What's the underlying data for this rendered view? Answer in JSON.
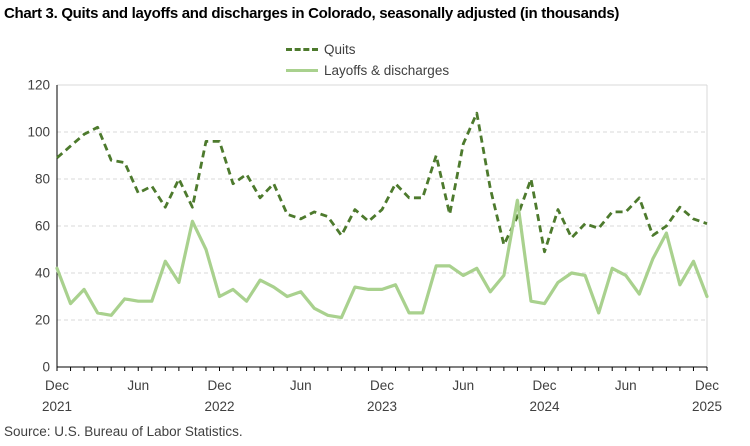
{
  "chart_data": {
    "type": "line",
    "title": "Chart 3. Quits and layoffs and discharges in Colorado, seasonally adjusted (in thousands)",
    "source": "Source: U.S. Bureau of Labor Statistics.",
    "x_frequency": "monthly",
    "x_start_month": "Dec 2021",
    "x_end_month": "Dec 2025",
    "ylim": [
      0,
      120
    ],
    "y_ticks": [
      0,
      20,
      40,
      60,
      80,
      100,
      120
    ],
    "grid": "horizontal-dashed",
    "legend_position": "top-center",
    "colors": {
      "grid": "#d9d9d9",
      "plot_border": "#d9d9d9",
      "axis": "#000000",
      "tick_text": "#404040",
      "title_text": "#000000"
    },
    "x_axis_ticks": [
      {
        "pos": 0,
        "month": "Dec",
        "year": "2021"
      },
      {
        "pos": 6,
        "month": "Jun"
      },
      {
        "pos": 12,
        "month": "Dec",
        "year": "2022"
      },
      {
        "pos": 18,
        "month": "Jun"
      },
      {
        "pos": 24,
        "month": "Dec",
        "year": "2023"
      },
      {
        "pos": 30,
        "month": "Jun"
      },
      {
        "pos": 36,
        "month": "Dec",
        "year": "2024"
      },
      {
        "pos": 42,
        "month": "Jun"
      },
      {
        "pos": 48,
        "month": "Dec",
        "year": "2025"
      }
    ],
    "series": [
      {
        "name": "Quits",
        "style": "dashed",
        "color": "#4d7a2d",
        "values": [
          89,
          94,
          99,
          102,
          88,
          87,
          74,
          77,
          68,
          80,
          68,
          96,
          96,
          78,
          82,
          72,
          78,
          65,
          63,
          66,
          64,
          56,
          67,
          62,
          67,
          78,
          72,
          72,
          90,
          65,
          95,
          108,
          76,
          52,
          64,
          80,
          49,
          67,
          55,
          61,
          59,
          66,
          66,
          72,
          56,
          60,
          68,
          63,
          61
        ]
      },
      {
        "name": "Layoffs & discharges",
        "style": "solid",
        "color": "#a9d18e",
        "values": [
          42,
          27,
          33,
          23,
          22,
          29,
          28,
          28,
          45,
          36,
          62,
          50,
          30,
          33,
          28,
          37,
          34,
          30,
          32,
          25,
          22,
          21,
          34,
          33,
          33,
          35,
          23,
          23,
          43,
          43,
          39,
          42,
          32,
          39,
          71,
          28,
          27,
          36,
          40,
          39,
          23,
          42,
          39,
          31,
          46,
          57,
          35,
          45,
          30
        ]
      }
    ]
  }
}
